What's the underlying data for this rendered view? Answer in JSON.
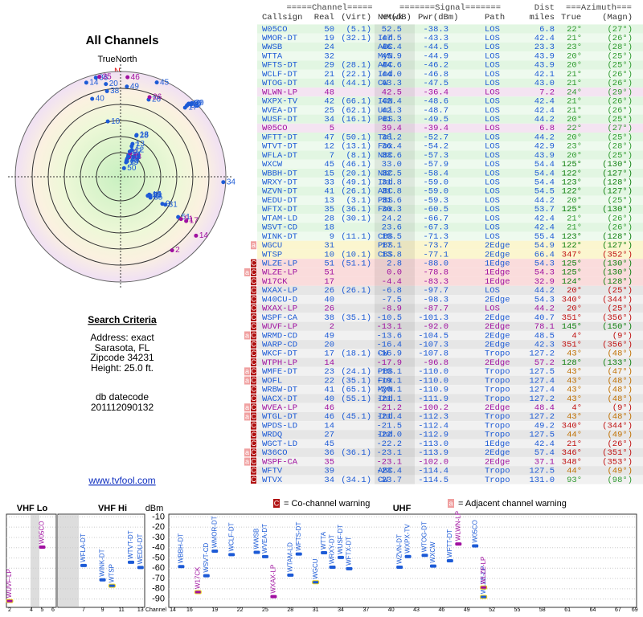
{
  "left": {
    "title": "All Channels",
    "north_label": "TrueNorth",
    "north_letter": "N",
    "criteria_title": "Search Criteria",
    "criteria": [
      "Address: exact",
      "Sarasota, FL",
      "Zipcode 34231",
      "Height: 25.0 ft."
    ],
    "datecode_label": "db datecode",
    "datecode": "201112090132",
    "link": "www.tvfool.com"
  },
  "table": {
    "group_headers": [
      "=====Channel=====",
      "=======Signal=======",
      "Dist",
      "===Azimuth==="
    ],
    "headers": [
      "Callsign",
      "Real",
      "(Virt)",
      "Netwk",
      "NM(dB)",
      "Pwr(dBm)",
      "Path",
      "miles",
      "True",
      "(Magn)"
    ],
    "rows": [
      {
        "flags": null,
        "cells": [
          "W05CO",
          "50",
          "(5.1)",
          null,
          "52.5",
          "-38.3",
          "LOS",
          "6.8",
          "22°",
          "(27°)"
        ],
        "color": "#1c5ad6",
        "bg": "#e2f6e2",
        "az_color": "#2f9a2f"
      },
      {
        "flags": null,
        "cells": [
          "WMOR-DT",
          "19",
          "(32.1)",
          "Ind",
          "47.5",
          "-43.3",
          "LOS",
          "42.4",
          "21°",
          "(26°)"
        ],
        "color": "#1c5ad6",
        "bg": "#eefaee",
        "az_color": "#2f9a2f"
      },
      {
        "flags": null,
        "cells": [
          "WWSB",
          "24",
          null,
          "ABC",
          "46.4",
          "-44.5",
          "LOS",
          "23.3",
          "23°",
          "(28°)"
        ],
        "color": "#1c5ad6",
        "bg": "#e2f6e2",
        "az_color": "#2f9a2f"
      },
      {
        "flags": null,
        "cells": [
          "WTTA",
          "32",
          null,
          "MyN",
          "45.9",
          "-44.9",
          "LOS",
          "43.9",
          "20°",
          "(25°)"
        ],
        "color": "#1c5ad6",
        "bg": "#eefaee",
        "az_color": "#2f9a2f"
      },
      {
        "flags": null,
        "cells": [
          "WFTS-DT",
          "29",
          "(28.1)",
          "ABC",
          "44.6",
          "-46.2",
          "LOS",
          "43.9",
          "20°",
          "(25°)"
        ],
        "color": "#1c5ad6",
        "bg": "#e2f6e2",
        "az_color": "#2f9a2f"
      },
      {
        "flags": null,
        "cells": [
          "WCLF-DT",
          "21",
          "(22.1)",
          "Ind",
          "44.0",
          "-46.8",
          "LOS",
          "42.1",
          "21°",
          "(26°)"
        ],
        "color": "#1c5ad6",
        "bg": "#eefaee",
        "az_color": "#2f9a2f"
      },
      {
        "flags": null,
        "cells": [
          "WTOG-DT",
          "44",
          "(44.1)",
          "CW",
          "43.3",
          "-47.5",
          "LOS",
          "43.0",
          "21°",
          "(26°)"
        ],
        "color": "#1c5ad6",
        "bg": "#e2f6e2",
        "az_color": "#2f9a2f"
      },
      {
        "flags": null,
        "cells": [
          "WLWN-LP",
          "48",
          null,
          null,
          "42.5",
          "-36.4",
          "LOS",
          "7.2",
          "24°",
          "(29°)"
        ],
        "color": "#a010a0",
        "bg": "#f4e4f2",
        "az_color": "#2f9a2f"
      },
      {
        "flags": null,
        "cells": [
          "WXPX-TV",
          "42",
          "(66.1)",
          "ION",
          "42.4",
          "-48.6",
          "LOS",
          "42.4",
          "21°",
          "(26°)"
        ],
        "color": "#1c5ad6",
        "bg": "#e2f6e2",
        "az_color": "#2f9a2f"
      },
      {
        "flags": null,
        "cells": [
          "WVEA-DT",
          "25",
          "(62.1)",
          "Uni",
          "42.3",
          "-48.7",
          "LOS",
          "42.4",
          "21°",
          "(26°)"
        ],
        "color": "#1c5ad6",
        "bg": "#eefaee",
        "az_color": "#2f9a2f"
      },
      {
        "flags": null,
        "cells": [
          "WUSF-DT",
          "34",
          "(16.1)",
          "PBS",
          "41.3",
          "-49.5",
          "LOS",
          "44.2",
          "20°",
          "(25°)"
        ],
        "color": "#1c5ad6",
        "bg": "#e2f6e2",
        "az_color": "#2f9a2f"
      },
      {
        "flags": null,
        "cells": [
          "W05CO",
          "5",
          null,
          null,
          "39.4",
          "-39.4",
          "LOS",
          "6.8",
          "22°",
          "(27°)"
        ],
        "color": "#a010a0",
        "bg": "#f4e4f2",
        "az_color": "#2f9a2f"
      },
      {
        "flags": null,
        "cells": [
          "WFTT-DT",
          "47",
          "(50.1)",
          "Tel",
          "38.2",
          "-52.7",
          "LOS",
          "44.2",
          "20°",
          "(25°)"
        ],
        "color": "#1c5ad6",
        "bg": "#e2f6e2",
        "az_color": "#2f9a2f"
      },
      {
        "flags": null,
        "cells": [
          "WTVT-DT",
          "12",
          "(13.1)",
          "Fox",
          "36.4",
          "-54.2",
          "LOS",
          "42.9",
          "23°",
          "(28°)"
        ],
        "color": "#1c5ad6",
        "bg": "#eefaee",
        "az_color": "#2f9a2f"
      },
      {
        "flags": null,
        "cells": [
          "WFLA-DT",
          "7",
          "(8.1)",
          "NBC",
          "33.6",
          "-57.3",
          "LOS",
          "43.9",
          "20°",
          "(25°)"
        ],
        "color": "#1c5ad6",
        "bg": "#e2f6e2",
        "az_color": "#2f9a2f"
      },
      {
        "flags": null,
        "cells": [
          "WXCW",
          "45",
          "(46.1)",
          null,
          "33.0",
          "-57.9",
          "LOS",
          "54.4",
          "125°",
          "(130°)"
        ],
        "color": "#1c5ad6",
        "bg": "#eefaee",
        "az_color": "#108010"
      },
      {
        "flags": null,
        "cells": [
          "WBBH-DT",
          "15",
          "(20.1)",
          "NBC",
          "32.5",
          "-58.4",
          "LOS",
          "54.4",
          "122°",
          "(127°)"
        ],
        "color": "#1c5ad6",
        "bg": "#e2f6e2",
        "az_color": "#108010"
      },
      {
        "flags": null,
        "cells": [
          "WRXY-DT",
          "33",
          "(49.1)",
          "Ind",
          "31.8",
          "-59.0",
          "LOS",
          "54.4",
          "123°",
          "(128°)"
        ],
        "color": "#1c5ad6",
        "bg": "#eefaee",
        "az_color": "#108010"
      },
      {
        "flags": null,
        "cells": [
          "WZVN-DT",
          "41",
          "(26.1)",
          "ABC",
          "31.8",
          "-59.0",
          "LOS",
          "54.5",
          "122°",
          "(127°)"
        ],
        "color": "#1c5ad6",
        "bg": "#e2f6e2",
        "az_color": "#108010"
      },
      {
        "flags": null,
        "cells": [
          "WEDU-DT",
          "13",
          "(3.1)",
          "PBS",
          "31.6",
          "-59.3",
          "LOS",
          "44.2",
          "20°",
          "(25°)"
        ],
        "color": "#1c5ad6",
        "bg": "#eefaee",
        "az_color": "#2f9a2f"
      },
      {
        "flags": null,
        "cells": [
          "WFTX-DT",
          "35",
          "(36.1)",
          "Fox",
          "30.3",
          "-60.5",
          "LOS",
          "53.7",
          "125°",
          "(130°)"
        ],
        "color": "#1c5ad6",
        "bg": "#e2f6e2",
        "az_color": "#108010"
      },
      {
        "flags": null,
        "cells": [
          "WTAM-LD",
          "28",
          "(30.1)",
          null,
          "24.2",
          "-66.7",
          "LOS",
          "42.4",
          "21°",
          "(26°)"
        ],
        "color": "#1c5ad6",
        "bg": "#eefaee",
        "az_color": "#2f9a2f"
      },
      {
        "flags": null,
        "cells": [
          "WSVT-CD",
          "18",
          null,
          null,
          "23.6",
          "-67.3",
          "LOS",
          "42.4",
          "21°",
          "(26°)"
        ],
        "color": "#1c5ad6",
        "bg": "#e2f6e2",
        "az_color": "#2f9a2f"
      },
      {
        "flags": null,
        "cells": [
          "WINK-DT",
          "9",
          "(11.1)",
          "CBS",
          "19.5",
          "-71.3",
          "LOS",
          "55.4",
          "123°",
          "(128°)"
        ],
        "color": "#1c5ad6",
        "bg": "#eefaee",
        "az_color": "#108010"
      },
      {
        "flags": [
          "a"
        ],
        "cells": [
          "WGCU",
          "31",
          null,
          "PBS",
          "17.1",
          "-73.7",
          "2Edge",
          "54.9",
          "122°",
          "(127°)"
        ],
        "color": "#1c5ad6",
        "bg": "#fbf6cf",
        "az_color": "#108010"
      },
      {
        "flags": null,
        "cells": [
          "WTSP",
          "10",
          "(10.1)",
          "CBS",
          "13.8",
          "-77.1",
          "2Edge",
          "66.4",
          "347°",
          "(352°)"
        ],
        "color": "#1c5ad6",
        "bg": "#fbf6cf",
        "az_color": "#c01010"
      },
      {
        "flags": [
          "C"
        ],
        "cells": [
          "WLZE-LP",
          "51",
          "(51.1)",
          null,
          "2.8",
          "-88.0",
          "1Edge",
          "54.3",
          "125°",
          "(130°)"
        ],
        "color": "#1c5ad6",
        "bg": "#fadcdc",
        "az_color": "#108010"
      },
      {
        "flags": [
          "a",
          "C"
        ],
        "cells": [
          "WLZE-LP",
          "51",
          null,
          null,
          "0.0",
          "-78.8",
          "1Edge",
          "54.3",
          "125°",
          "(130°)"
        ],
        "color": "#a010a0",
        "bg": "#fadcdc",
        "az_color": "#108010"
      },
      {
        "flags": [
          "C"
        ],
        "cells": [
          "W17CK",
          "17",
          null,
          null,
          "-4.4",
          "-83.3",
          "1Edge",
          "32.9",
          "124°",
          "(128°)"
        ],
        "color": "#a010a0",
        "bg": "#fadcdc",
        "az_color": "#108010"
      },
      {
        "flags": [
          "C"
        ],
        "cells": [
          "WXAX-LP",
          "26",
          "(26.1)",
          null,
          "-6.8",
          "-97.7",
          "LOS",
          "44.2",
          "20°",
          "(25°)"
        ],
        "color": "#1c5ad6",
        "bg": "#e6e6e6",
        "az_color": "#c01010"
      },
      {
        "flags": [
          "C"
        ],
        "cells": [
          "W40CU-D",
          "40",
          null,
          null,
          "-7.5",
          "-98.3",
          "2Edge",
          "54.3",
          "340°",
          "(344°)"
        ],
        "color": "#1c5ad6",
        "bg": "#f1f1f1",
        "az_color": "#c01010"
      },
      {
        "flags": [
          "C"
        ],
        "cells": [
          "WXAX-LP",
          "26",
          null,
          null,
          "-8.9",
          "-87.7",
          "LOS",
          "44.2",
          "20°",
          "(25°)"
        ],
        "color": "#a010a0",
        "bg": "#e6e6e6",
        "az_color": "#c01010"
      },
      {
        "flags": [
          "C"
        ],
        "cells": [
          "WSPF-CA",
          "38",
          "(35.1)",
          null,
          "-10.5",
          "-101.3",
          "2Edge",
          "40.7",
          "351°",
          "(356°)"
        ],
        "color": "#1c5ad6",
        "bg": "#f1f1f1",
        "az_color": "#c01010"
      },
      {
        "flags": [
          "C"
        ],
        "cells": [
          "WUVF-LP",
          "2",
          null,
          null,
          "-13.1",
          "-92.0",
          "2Edge",
          "78.1",
          "145°",
          "(150°)"
        ],
        "color": "#a010a0",
        "bg": "#e6e6e6",
        "az_color": "#108010"
      },
      {
        "flags": [
          "a",
          "C"
        ],
        "cells": [
          "WRMD-CD",
          "49",
          null,
          null,
          "-13.6",
          "-104.5",
          "2Edge",
          "48.5",
          "4°",
          "(9°)"
        ],
        "color": "#1c5ad6",
        "bg": "#f1f1f1",
        "az_color": "#c01010"
      },
      {
        "flags": [
          "C"
        ],
        "cells": [
          "WARP-CD",
          "20",
          null,
          null,
          "-16.4",
          "-107.3",
          "2Edge",
          "42.3",
          "351°",
          "(356°)"
        ],
        "color": "#1c5ad6",
        "bg": "#e6e6e6",
        "az_color": "#c01010"
      },
      {
        "flags": [
          "C"
        ],
        "cells": [
          "WKCF-DT",
          "17",
          "(18.1)",
          "CW",
          "-16.9",
          "-107.8",
          "Tropo",
          "127.2",
          "43°",
          "(48°)"
        ],
        "color": "#1c5ad6",
        "bg": "#f1f1f1",
        "az_color": "#c07000"
      },
      {
        "flags": [
          "C"
        ],
        "cells": [
          "WTPH-LP",
          "14",
          null,
          null,
          "-17.9",
          "-96.8",
          "2Edge",
          "57.2",
          "128°",
          "(133°)"
        ],
        "color": "#a010a0",
        "bg": "#e6e6e6",
        "az_color": "#108010"
      },
      {
        "flags": [
          "a",
          "C"
        ],
        "cells": [
          "WMFE-DT",
          "23",
          "(24.1)",
          "PBS",
          "-19.1",
          "-110.0",
          "Tropo",
          "127.5",
          "43°",
          "(47°)"
        ],
        "color": "#1c5ad6",
        "bg": "#f1f1f1",
        "az_color": "#c07000"
      },
      {
        "flags": [
          "a",
          "C"
        ],
        "cells": [
          "WOFL",
          "22",
          "(35.1)",
          "Fox",
          "-19.1",
          "-110.0",
          "Tropo",
          "127.4",
          "43°",
          "(48°)"
        ],
        "color": "#1c5ad6",
        "bg": "#e6e6e6",
        "az_color": "#c07000"
      },
      {
        "flags": [
          "C"
        ],
        "cells": [
          "WRBW-DT",
          "41",
          "(65.1)",
          "MyN",
          "-20.1",
          "-110.9",
          "Tropo",
          "127.4",
          "43°",
          "(48°)"
        ],
        "color": "#1c5ad6",
        "bg": "#f1f1f1",
        "az_color": "#c07000"
      },
      {
        "flags": [
          "C"
        ],
        "cells": [
          "WACX-DT",
          "40",
          "(55.1)",
          "Ind",
          "-21.1",
          "-111.9",
          "Tropo",
          "127.2",
          "43°",
          "(48°)"
        ],
        "color": "#1c5ad6",
        "bg": "#e6e6e6",
        "az_color": "#c07000"
      },
      {
        "flags": [
          "a",
          "C"
        ],
        "cells": [
          "WVEA-LP",
          "46",
          null,
          null,
          "-21.2",
          "-100.2",
          "2Edge",
          "48.4",
          "4°",
          "(9°)"
        ],
        "color": "#a010a0",
        "bg": "#f1f1f1",
        "az_color": "#c01010"
      },
      {
        "flags": [
          "a",
          "C"
        ],
        "cells": [
          "WTGL-DT",
          "46",
          "(45.1)",
          "Ind",
          "-21.4",
          "-112.3",
          "Tropo",
          "127.2",
          "43°",
          "(48°)"
        ],
        "color": "#1c5ad6",
        "bg": "#e6e6e6",
        "az_color": "#c07000"
      },
      {
        "flags": [
          "C"
        ],
        "cells": [
          "WPDS-LD",
          "14",
          null,
          null,
          "-21.5",
          "-112.4",
          "Tropo",
          "49.2",
          "340°",
          "(344°)"
        ],
        "color": "#1c5ad6",
        "bg": "#f1f1f1",
        "az_color": "#c01010"
      },
      {
        "flags": [
          "C"
        ],
        "cells": [
          "WRDQ",
          "27",
          null,
          "Ind",
          "-22.0",
          "-112.9",
          "Tropo",
          "127.5",
          "44°",
          "(49°)"
        ],
        "color": "#1c5ad6",
        "bg": "#e6e6e6",
        "az_color": "#c07000"
      },
      {
        "flags": [
          "C"
        ],
        "cells": [
          "WGCT-LD",
          "45",
          null,
          null,
          "-22.2",
          "-113.0",
          "1Edge",
          "42.4",
          "21°",
          "(26°)"
        ],
        "color": "#1c5ad6",
        "bg": "#f1f1f1",
        "az_color": "#c01010"
      },
      {
        "flags": [
          "a",
          "C"
        ],
        "cells": [
          "W36CO",
          "36",
          "(36.1)",
          null,
          "-23.1",
          "-113.9",
          "2Edge",
          "57.4",
          "346°",
          "(351°)"
        ],
        "color": "#1c5ad6",
        "bg": "#e6e6e6",
        "az_color": "#c01010"
      },
      {
        "flags": [
          "a",
          "C"
        ],
        "cells": [
          "WSPF-CA",
          "35",
          null,
          null,
          "-23.1",
          "-102.0",
          "2Edge",
          "37.1",
          "348°",
          "(353°)"
        ],
        "color": "#a010a0",
        "bg": "#f1f1f1",
        "az_color": "#c01010"
      },
      {
        "flags": [
          "C"
        ],
        "cells": [
          "WFTV",
          "39",
          null,
          "ABC",
          "-23.4",
          "-114.4",
          "Tropo",
          "127.5",
          "44°",
          "(49°)"
        ],
        "color": "#1c5ad6",
        "bg": "#e6e6e6",
        "az_color": "#c07000"
      },
      {
        "flags": [
          "C"
        ],
        "cells": [
          "WTVX",
          "34",
          "(34.1)",
          "CW",
          "-23.7",
          "-114.5",
          "Tropo",
          "131.0",
          "93°",
          "(98°)"
        ],
        "color": "#1c5ad6",
        "bg": "#f1f1f1",
        "az_color": "#2f9a2f"
      }
    ]
  },
  "spectrum": {
    "legend": [
      {
        "flag": "C",
        "text": "= Co-channel warning"
      },
      {
        "flag": "a",
        "text": "= Adjacent channel warning"
      }
    ],
    "bands": [
      "VHF Lo",
      "VHF Hi",
      "UHF"
    ],
    "y_label": "dBm",
    "x_label": "Channel",
    "ylim": [
      -95,
      -5
    ],
    "yticks": [
      -10,
      -20,
      -30,
      -40,
      -50,
      -60,
      -70,
      -80,
      -90
    ],
    "xticks": [
      2,
      4,
      5,
      6,
      7,
      9,
      11,
      13,
      14,
      16,
      19,
      22,
      25,
      28,
      31,
      34,
      37,
      40,
      43,
      46,
      49,
      52,
      55,
      58,
      61,
      64,
      67,
      69
    ]
  }
}
